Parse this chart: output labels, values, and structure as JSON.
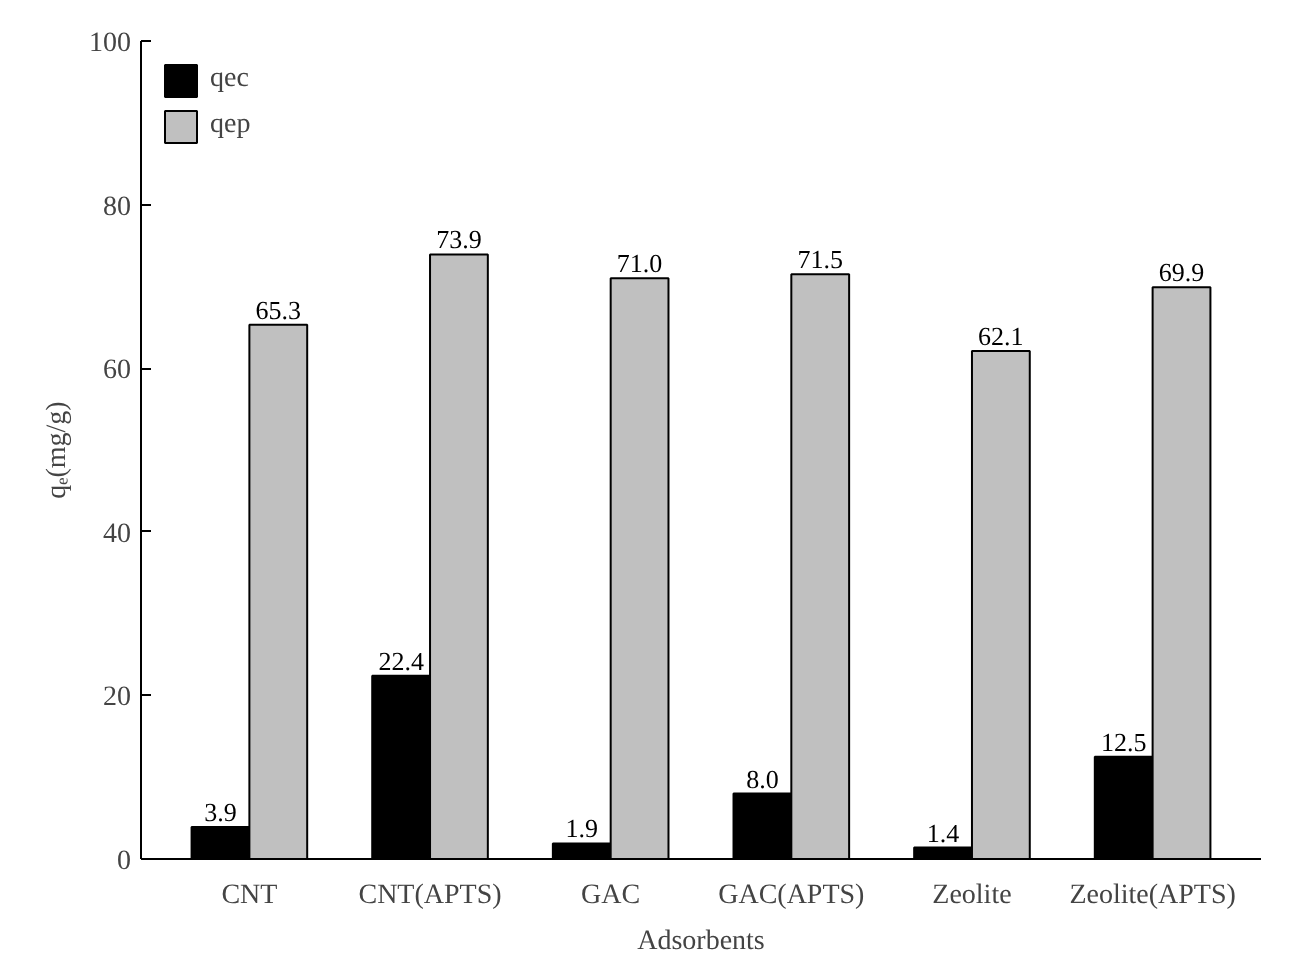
{
  "chart_data": {
    "type": "bar",
    "xlabel": "Adsorbents",
    "ylabel": "qₑ(mg/g)",
    "categories": [
      "CNT",
      "CNT(APTS)",
      "GAC",
      "GAC(APTS)",
      "Zeolite",
      "Zeolite(APTS)"
    ],
    "series": [
      {
        "name": "qec",
        "color": "#000000",
        "values": [
          3.9,
          22.4,
          1.9,
          8.0,
          1.4,
          12.5
        ],
        "value_labels": [
          "3.9",
          "22.4",
          "1.9",
          "8.0",
          "1.4",
          "12.5"
        ]
      },
      {
        "name": "qep",
        "color": "#c0c0c0",
        "values": [
          65.3,
          73.9,
          71.0,
          71.5,
          62.1,
          69.9
        ],
        "value_labels": [
          "65.3",
          "73.9",
          "71.0",
          "71.5",
          "62.1",
          "69.9"
        ]
      }
    ],
    "ylim": [
      0,
      100
    ],
    "yticks": [
      0,
      20,
      40,
      60,
      80,
      100
    ],
    "grid": false,
    "legend": "top left"
  }
}
